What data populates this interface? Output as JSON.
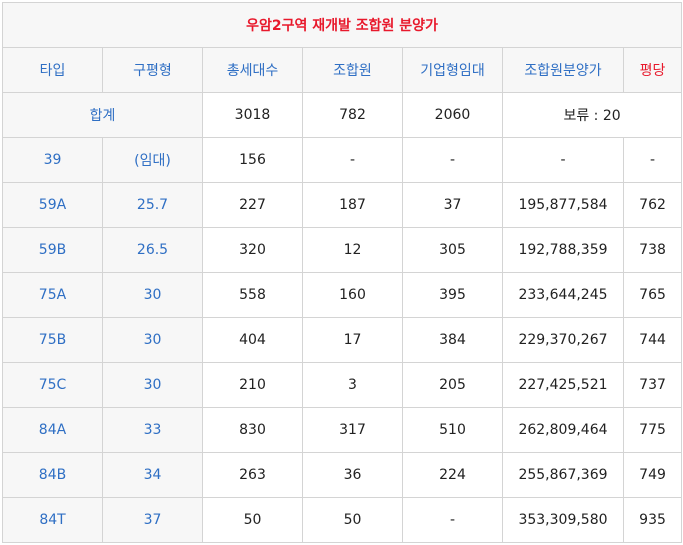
{
  "title": "우암2구역 재개발 조합원 분양가",
  "headers": [
    "타입",
    "구평형",
    "총세대수",
    "조합원",
    "기업형임대",
    "조합원분양가",
    "평당"
  ],
  "total": {
    "label": "합계",
    "total_units": "3018",
    "members": "782",
    "rental": "2060",
    "reserved": "보류 : 20"
  },
  "rows": [
    {
      "type": "39",
      "pyeong": "(임대)",
      "total": "156",
      "members": "-",
      "rental": "-",
      "price": "-",
      "per_pyeong": "-"
    },
    {
      "type": "59A",
      "pyeong": "25.7",
      "total": "227",
      "members": "187",
      "rental": "37",
      "price": "195,877,584",
      "per_pyeong": "762"
    },
    {
      "type": "59B",
      "pyeong": "26.5",
      "total": "320",
      "members": "12",
      "rental": "305",
      "price": "192,788,359",
      "per_pyeong": "738"
    },
    {
      "type": "75A",
      "pyeong": "30",
      "total": "558",
      "members": "160",
      "rental": "395",
      "price": "233,644,245",
      "per_pyeong": "765"
    },
    {
      "type": "75B",
      "pyeong": "30",
      "total": "404",
      "members": "17",
      "rental": "384",
      "price": "229,370,267",
      "per_pyeong": "744"
    },
    {
      "type": "75C",
      "pyeong": "30",
      "total": "210",
      "members": "3",
      "rental": "205",
      "price": "227,425,521",
      "per_pyeong": "737"
    },
    {
      "type": "84A",
      "pyeong": "33",
      "total": "830",
      "members": "317",
      "rental": "510",
      "price": "262,809,464",
      "per_pyeong": "775"
    },
    {
      "type": "84B",
      "pyeong": "34",
      "total": "263",
      "members": "36",
      "rental": "224",
      "price": "255,867,369",
      "per_pyeong": "749"
    },
    {
      "type": "84T",
      "pyeong": "37",
      "total": "50",
      "members": "50",
      "rental": "-",
      "price": "353,309,580",
      "per_pyeong": "935"
    }
  ],
  "colors": {
    "title": "#e8192c",
    "header": "#2f6fc4",
    "accent_header": "#e8192c",
    "label_bg": "#f7f7f7",
    "border": "#d4d4d4"
  }
}
